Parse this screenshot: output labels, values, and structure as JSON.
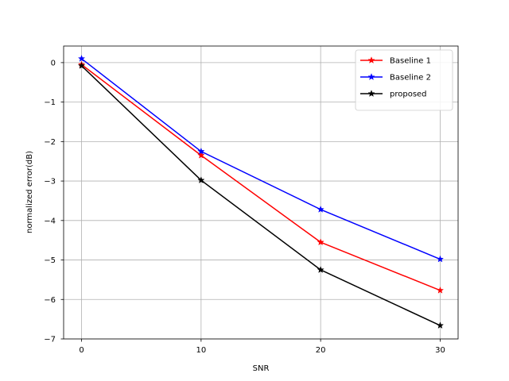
{
  "chart_data": {
    "type": "line",
    "title": "",
    "xlabel": "SNR",
    "ylabel": "normalized error(dB)",
    "x": [
      0,
      10,
      20,
      30
    ],
    "xlim": [
      -1.5,
      31.5
    ],
    "ylim": [
      -7,
      0.42
    ],
    "xticks": [
      0,
      10,
      20,
      30
    ],
    "yticks": [
      0,
      -1,
      -2,
      -3,
      -4,
      -5,
      -6,
      -7
    ],
    "xtick_labels": [
      "0",
      "10",
      "20",
      "30"
    ],
    "ytick_labels": [
      "0",
      "−1",
      "−2",
      "−3",
      "−4",
      "−5",
      "−6",
      "−7"
    ],
    "grid": true,
    "legend_position": "top-right",
    "series": [
      {
        "name": "Baseline 1",
        "color": "#ff0000",
        "marker": "star",
        "values": [
          -0.05,
          -2.35,
          -4.55,
          -5.77
        ]
      },
      {
        "name": "Baseline 2",
        "color": "#0000ff",
        "marker": "star",
        "values": [
          0.1,
          -2.25,
          -3.72,
          -4.98
        ]
      },
      {
        "name": "proposed",
        "color": "#000000",
        "marker": "star",
        "values": [
          -0.08,
          -2.98,
          -5.25,
          -6.66
        ]
      }
    ]
  }
}
